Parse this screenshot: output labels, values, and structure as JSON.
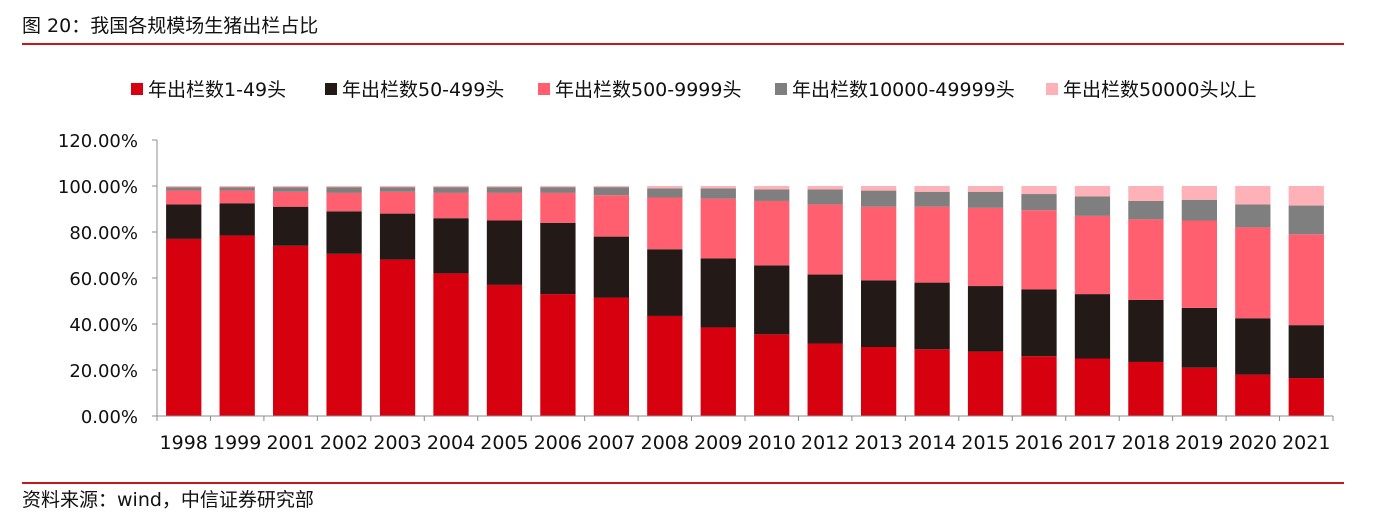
{
  "figure": {
    "title": "图 20：我国各规模场生猪出栏占比",
    "source": "资料来源：wind，中信证券研究部"
  },
  "chart_data": {
    "type": "bar",
    "stacked": true,
    "categories": [
      "1998",
      "1999",
      "2001",
      "2002",
      "2003",
      "2004",
      "2005",
      "2006",
      "2007",
      "2008",
      "2009",
      "2010",
      "2012",
      "2013",
      "2014",
      "2015",
      "2016",
      "2017",
      "2018",
      "2019",
      "2020",
      "2021"
    ],
    "series": [
      {
        "name": "年出栏数1-49头",
        "color": "#d7000f",
        "values": [
          77,
          78.5,
          74,
          70.5,
          68,
          62,
          57,
          53,
          51.5,
          43.5,
          38.5,
          35.5,
          31.5,
          30,
          29,
          28,
          26,
          25,
          23.5,
          21,
          18,
          16.5
        ]
      },
      {
        "name": "年出栏数50-499头",
        "color": "#231916",
        "values": [
          15,
          14,
          17,
          18.5,
          20,
          24,
          28,
          31,
          26.5,
          29,
          30,
          30,
          30,
          29,
          29,
          28.5,
          29,
          28,
          27,
          26,
          24.5,
          23
        ]
      },
      {
        "name": "年出栏数500-9999头",
        "color": "#ff5f6e",
        "values": [
          6,
          5.5,
          6.5,
          8,
          9.5,
          11,
          12,
          13,
          18,
          22.5,
          26,
          28,
          30.5,
          32,
          33,
          34,
          34.5,
          34,
          35,
          38,
          39.5,
          39.5
        ]
      },
      {
        "name": "年出栏数10000-49999头",
        "color": "#7f7f7f",
        "values": [
          1.5,
          1.5,
          2,
          2.5,
          2,
          2.5,
          2.5,
          2.5,
          3.5,
          4,
          4.5,
          5,
          6.5,
          7,
          6.5,
          7,
          7,
          8.5,
          8,
          9,
          10,
          12.5
        ]
      },
      {
        "name": "年出栏数50000头以上",
        "color": "#ffb1b8",
        "values": [
          0.5,
          0.5,
          0.5,
          0.5,
          0.5,
          0.5,
          0.5,
          0.5,
          0.5,
          1,
          1,
          1.5,
          1.5,
          2,
          2.5,
          2.5,
          3.5,
          4.5,
          6.5,
          6,
          8,
          8.5
        ]
      }
    ],
    "y_ticks": [
      "0.00%",
      "20.00%",
      "40.00%",
      "60.00%",
      "80.00%",
      "100.00%",
      "120.00%"
    ],
    "ylim": [
      0,
      120
    ],
    "legend_position": "top",
    "grid": false
  }
}
